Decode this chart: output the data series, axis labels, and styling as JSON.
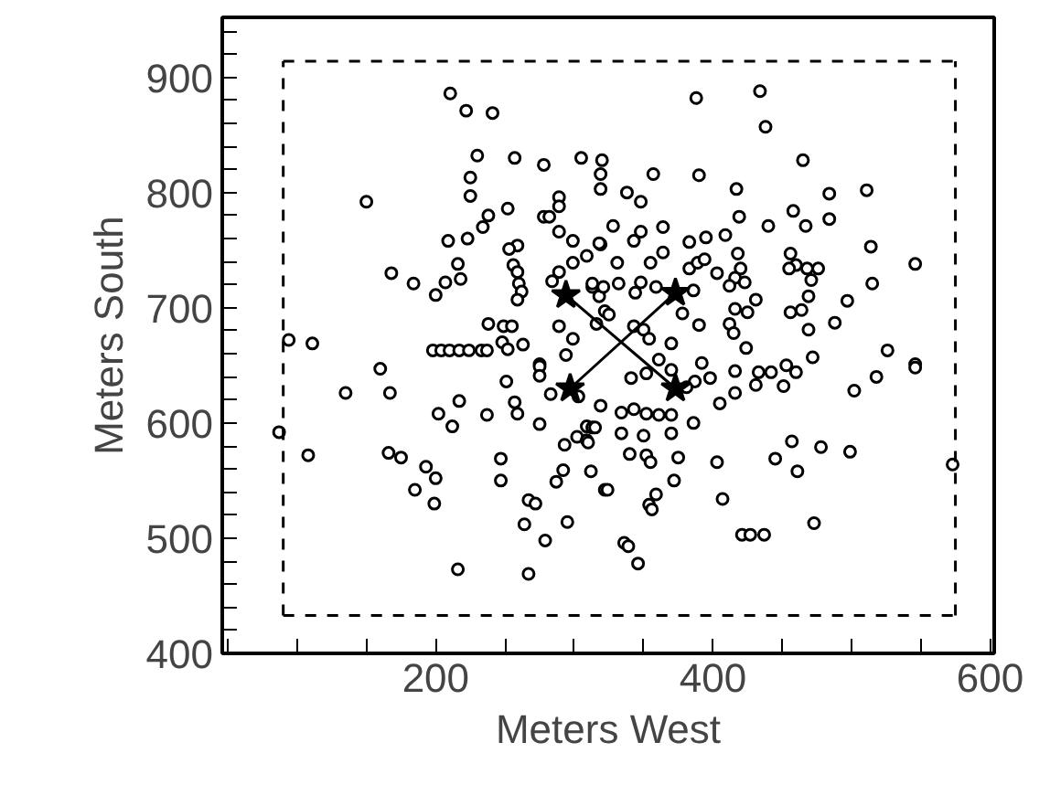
{
  "chart_data": {
    "type": "scatter",
    "xlabel": "Meters West",
    "ylabel": "Meters South",
    "xlim": [
      46,
      603
    ],
    "ylim": [
      400,
      952
    ],
    "xticks": [
      {
        "value": 50,
        "label": null
      },
      {
        "value": 100,
        "label": null
      },
      {
        "value": 150,
        "label": null
      },
      200,
      {
        "value": 250,
        "label": null
      },
      {
        "value": 300,
        "label": null
      },
      {
        "value": 350,
        "label": null
      },
      400,
      {
        "value": 450,
        "label": null
      },
      {
        "value": 500,
        "label": null
      },
      {
        "value": 550,
        "label": null
      },
      600
    ],
    "yticks": [
      400,
      {
        "value": 420,
        "label": null
      },
      {
        "value": 440,
        "label": null
      },
      {
        "value": 460,
        "label": null
      },
      {
        "value": 480,
        "label": null
      },
      500,
      {
        "value": 520,
        "label": null
      },
      {
        "value": 540,
        "label": null
      },
      {
        "value": 560,
        "label": null
      },
      {
        "value": 580,
        "label": null
      },
      600,
      {
        "value": 620,
        "label": null
      },
      {
        "value": 640,
        "label": null
      },
      {
        "value": 660,
        "label": null
      },
      {
        "value": 680,
        "label": null
      },
      700,
      {
        "value": 720,
        "label": null
      },
      {
        "value": 740,
        "label": null
      },
      {
        "value": 760,
        "label": null
      },
      {
        "value": 780,
        "label": null
      },
      800,
      {
        "value": 820,
        "label": null
      },
      {
        "value": 840,
        "label": null
      },
      {
        "value": 860,
        "label": null
      },
      {
        "value": 880,
        "label": null
      },
      900,
      {
        "value": 920,
        "label": null
      },
      {
        "value": 940,
        "label": null
      }
    ],
    "grid": false,
    "series": [
      {
        "type": "scatter",
        "color": "#000000",
        "marker": "circle",
        "x": [
          210.5,
          222,
          241,
          230,
          257,
          278,
          305,
          320,
          319,
          319,
          225,
          225,
          150,
          289,
          289,
          278,
          282,
          238,
          234,
          252,
          223,
          209,
          289,
          299,
          319,
          309,
          299,
          259,
          253,
          256,
          259,
          260,
          262,
          259,
          216,
          218,
          207,
          200,
          184,
          168,
          284,
          289,
          313,
          318,
          289,
          299,
          316,
          322,
          238,
          249,
          255,
          248,
          252,
          263,
          94,
          111,
          198,
          204,
          210,
          217,
          224,
          233,
          237,
          275,
          294,
          388,
          434,
          438,
          357,
          390,
          465,
          417,
          484,
          511,
          338,
          348,
          419,
          458,
          484,
          328,
          348,
          364,
          440,
          467,
          343,
          383,
          395,
          409,
          318,
          364,
          355,
          331,
          383,
          389,
          394,
          403,
          418,
          420,
          416,
          423,
          412,
          456,
          460,
          455,
          468,
          476,
          471,
          469,
          514,
          546,
          515,
          313,
          321,
          332,
          348,
          344,
          359,
          386,
          431,
          497,
          378,
          416,
          425,
          456,
          464,
          488,
          469,
          325,
          343,
          350,
          390,
          412,
          415,
          424,
          370,
          354,
          526,
          472,
          546,
          160,
          135,
          167,
          217,
          202,
          212,
          237,
          257,
          259,
          275,
          251,
          275,
          275,
          283,
          303,
          319,
          87,
          108,
          166,
          175,
          193,
          200,
          185,
          199,
          247,
          247,
          267,
          272,
          264,
          279,
          295,
          293,
          302,
          309,
          309,
          313,
          292,
          287,
          312,
          322,
          216,
          267,
          341,
          352,
          361,
          370,
          392,
          387,
          398,
          381,
          416,
          416,
          405,
          433,
          442,
          431,
          453,
          460,
          451,
          518,
          502,
          546,
          315,
          310,
          334,
          343,
          352,
          361,
          370,
          334,
          350,
          370,
          386,
          340,
          352,
          355,
          375,
          403,
          324,
          359,
          354,
          356,
          372,
          407,
          445,
          457,
          461,
          478,
          499,
          573,
          421,
          427,
          437,
          473,
          336,
          339,
          346
        ],
        "values": [
          886,
          871,
          869,
          832,
          830,
          824,
          830,
          828,
          816,
          803,
          813,
          797,
          792,
          796,
          788,
          779,
          779,
          780,
          770,
          786,
          760,
          758,
          766,
          758,
          755,
          745,
          739,
          754,
          751,
          737,
          731,
          721,
          714,
          707,
          738,
          725,
          722,
          711,
          721,
          730,
          723,
          731,
          718,
          710,
          684,
          673,
          686,
          697,
          686,
          684,
          684,
          670,
          664,
          668,
          672,
          669,
          663,
          663,
          663,
          663,
          663,
          663,
          663,
          651,
          659,
          882,
          888,
          857,
          816,
          815,
          828,
          803,
          799,
          802,
          800,
          792,
          779,
          784,
          777,
          771,
          766,
          770,
          771,
          771,
          758,
          757,
          761,
          763,
          756,
          748,
          739,
          739,
          734,
          739,
          742,
          730,
          747,
          734,
          726,
          722,
          719,
          747,
          737,
          734,
          734,
          734,
          724,
          710,
          753,
          738,
          721,
          721,
          718,
          721,
          722,
          713,
          718,
          715,
          707,
          706,
          695,
          699,
          696,
          696,
          698,
          687,
          681,
          694,
          684,
          681,
          685,
          686,
          678,
          665,
          669,
          673,
          663,
          657,
          651,
          647,
          626,
          626,
          619,
          608,
          597,
          607,
          618,
          608,
          599,
          636,
          649,
          641,
          625,
          623,
          615,
          592,
          572,
          574,
          570,
          562,
          552,
          542,
          530,
          569,
          550,
          533,
          530,
          512,
          498,
          514,
          581,
          588,
          585,
          597,
          596,
          559,
          549,
          558,
          542,
          473,
          469,
          639,
          643,
          655,
          646,
          652,
          636,
          639,
          631,
          645,
          626,
          617,
          644,
          644,
          633,
          650,
          644,
          632,
          640,
          628,
          648,
          596,
          583,
          609,
          612,
          608,
          607,
          607,
          591,
          589,
          591,
          600,
          573,
          572,
          566,
          570,
          566,
          542,
          538,
          529,
          525,
          550,
          534,
          569,
          584,
          558,
          579,
          575,
          564,
          503,
          503,
          503,
          513,
          496,
          493,
          478
        ]
      },
      {
        "type": "line",
        "color": "#000000",
        "line_style": "solid",
        "marker": "none",
        "x": [
          294,
          373
        ],
        "values": [
          711,
          630
        ]
      },
      {
        "type": "line",
        "color": "#000000",
        "line_style": "solid",
        "marker": "none",
        "x": [
          297,
          373
        ],
        "values": [
          630,
          713
        ]
      },
      {
        "type": "scatter",
        "color": "#000000",
        "marker": "star",
        "x": [
          294,
          373,
          297,
          373
        ],
        "values": [
          711,
          713,
          630,
          630
        ]
      },
      {
        "type": "line",
        "color": "#000000",
        "line_style": "dashed",
        "marker": "none",
        "x": [
          90,
          575
        ],
        "values": [
          433,
          433
        ]
      },
      {
        "type": "line",
        "color": "#000000",
        "line_style": "dashed",
        "marker": "none",
        "x": [
          90,
          575
        ],
        "values": [
          914,
          914
        ]
      },
      {
        "type": "line",
        "color": "#000000",
        "line_style": "dashed",
        "marker": "none",
        "x": [
          90,
          90
        ],
        "values": [
          433,
          914
        ]
      },
      {
        "type": "line",
        "color": "#000000",
        "line_style": "dashed",
        "marker": "none",
        "x": [
          575,
          575
        ],
        "values": [
          433,
          914
        ]
      }
    ]
  }
}
